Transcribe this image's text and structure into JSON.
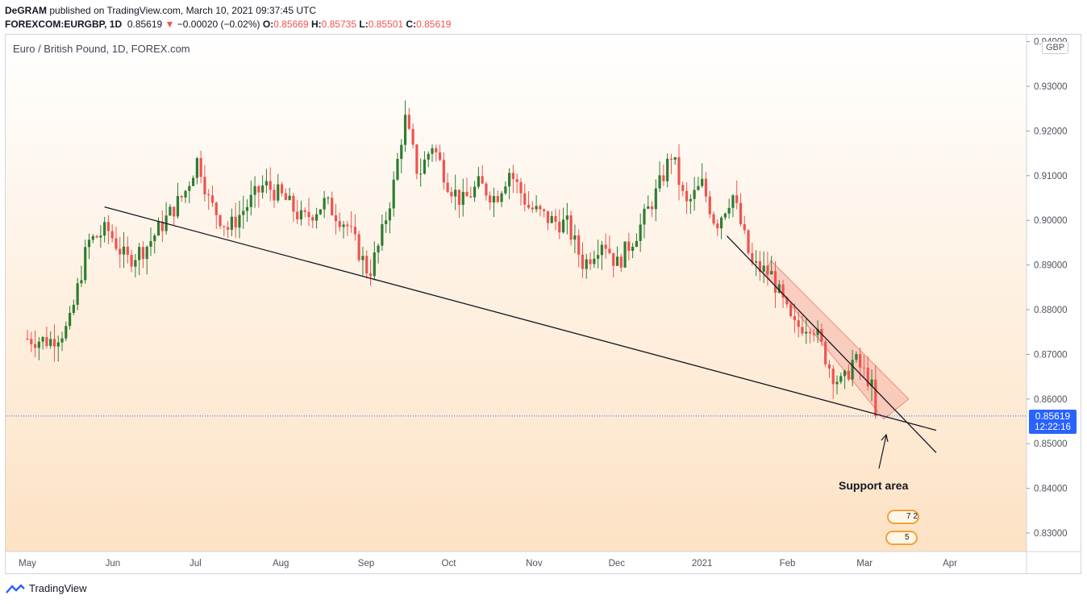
{
  "header": {
    "author": "DeGRAM",
    "published": "published on TradingView.com, March 10, 2021 09:37:45 UTC",
    "symbol": "FOREXCOM:EURGBP, 1D",
    "last": "0.85619",
    "change": "−0.00020 (−0.02%)",
    "o_label": "O:",
    "o": "0.85669",
    "h_label": "H:",
    "h": "0.85735",
    "l_label": "L:",
    "l": "0.85501",
    "c_label": "C:",
    "c": "0.85619"
  },
  "chart_title": "Euro / British Pound, 1D, FOREX.com",
  "currency_badge": "GBP",
  "price_label": {
    "price": "0.85619",
    "timer": "12:22:16"
  },
  "annotation": "Support area",
  "events": {
    "top": "7 2",
    "bottom": "5"
  },
  "footer": {
    "brand": "TradingView"
  },
  "colors": {
    "up": "#2e7d32",
    "down": "#ef5350",
    "accent": "#2962ff",
    "zone": "#f4a59a"
  },
  "chart_data": {
    "type": "candlestick",
    "title": "Euro / British Pound, 1D, FOREX.com",
    "y_axis": {
      "currency": "GBP",
      "range": [
        0.825,
        0.9415
      ],
      "ticks": [
        "0.83000",
        "0.84000",
        "0.85000",
        "0.86000",
        "0.87000",
        "0.88000",
        "0.89000",
        "0.90000",
        "0.91000",
        "0.92000",
        "0.93000",
        "0.94000"
      ]
    },
    "x_axis": {
      "ticks": [
        "May",
        "Jun",
        "Jul",
        "Aug",
        "Sep",
        "Oct",
        "Nov",
        "Dec",
        "2021",
        "Feb",
        "Mar",
        "Apr"
      ],
      "tick_days": [
        0,
        31,
        61,
        92,
        123,
        153,
        184,
        214,
        245,
        276,
        304,
        335
      ]
    },
    "current_price": 0.85619,
    "key_points": [
      {
        "day": 0,
        "price": 0.8735
      },
      {
        "day": 8,
        "price": 0.873
      },
      {
        "day": 15,
        "price": 0.876
      },
      {
        "day": 22,
        "price": 0.895
      },
      {
        "day": 29,
        "price": 0.898
      },
      {
        "day": 36,
        "price": 0.891
      },
      {
        "day": 43,
        "price": 0.894
      },
      {
        "day": 50,
        "price": 0.9
      },
      {
        "day": 57,
        "price": 0.906
      },
      {
        "day": 62,
        "price": 0.914
      },
      {
        "day": 66,
        "price": 0.904
      },
      {
        "day": 73,
        "price": 0.898
      },
      {
        "day": 78,
        "price": 0.902
      },
      {
        "day": 86,
        "price": 0.908
      },
      {
        "day": 93,
        "price": 0.905
      },
      {
        "day": 100,
        "price": 0.9
      },
      {
        "day": 108,
        "price": 0.904
      },
      {
        "day": 116,
        "price": 0.899
      },
      {
        "day": 124,
        "price": 0.888
      },
      {
        "day": 128,
        "price": 0.895
      },
      {
        "day": 133,
        "price": 0.908
      },
      {
        "day": 137,
        "price": 0.923
      },
      {
        "day": 142,
        "price": 0.91
      },
      {
        "day": 147,
        "price": 0.917
      },
      {
        "day": 153,
        "price": 0.908
      },
      {
        "day": 158,
        "price": 0.904
      },
      {
        "day": 164,
        "price": 0.908
      },
      {
        "day": 170,
        "price": 0.905
      },
      {
        "day": 175,
        "price": 0.911
      },
      {
        "day": 182,
        "price": 0.903
      },
      {
        "day": 190,
        "price": 0.9
      },
      {
        "day": 196,
        "price": 0.899
      },
      {
        "day": 202,
        "price": 0.89
      },
      {
        "day": 209,
        "price": 0.896
      },
      {
        "day": 214,
        "price": 0.89
      },
      {
        "day": 222,
        "price": 0.898
      },
      {
        "day": 229,
        "price": 0.907
      },
      {
        "day": 234,
        "price": 0.915
      },
      {
        "day": 239,
        "price": 0.903
      },
      {
        "day": 245,
        "price": 0.908
      },
      {
        "day": 250,
        "price": 0.899
      },
      {
        "day": 256,
        "price": 0.906
      },
      {
        "day": 263,
        "price": 0.89
      },
      {
        "day": 270,
        "price": 0.888
      },
      {
        "day": 278,
        "price": 0.876
      },
      {
        "day": 285,
        "price": 0.877
      },
      {
        "day": 292,
        "price": 0.866
      },
      {
        "day": 296,
        "price": 0.863
      },
      {
        "day": 300,
        "price": 0.869
      },
      {
        "day": 306,
        "price": 0.864
      },
      {
        "day": 309,
        "price": 0.8562
      }
    ],
    "trendlines": [
      {
        "name": "long-support-line",
        "from": {
          "day": 28,
          "price": 0.903
        },
        "to": {
          "day": 330,
          "price": 0.853
        }
      },
      {
        "name": "steep-support-line",
        "from": {
          "day": 254,
          "price": 0.8965
        },
        "to": {
          "day": 330,
          "price": 0.848
        }
      }
    ],
    "channel": {
      "upper_start": {
        "day": 270,
        "price": 0.891
      },
      "upper_end": {
        "day": 320,
        "price": 0.86
      },
      "lower_start": {
        "day": 268,
        "price": 0.888
      },
      "lower_end": {
        "day": 311,
        "price": 0.8555
      }
    }
  }
}
